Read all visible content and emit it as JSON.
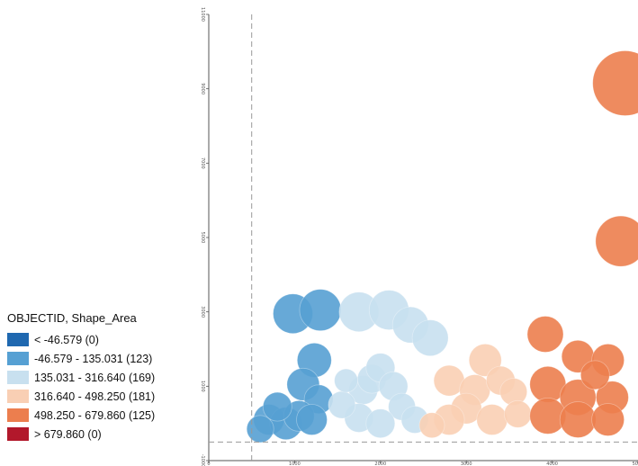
{
  "chart_data": {
    "type": "scatter",
    "title": "",
    "xlabel": "",
    "ylabel": "",
    "xlim": [
      0,
      5000
    ],
    "ylim": [
      -1000,
      11000
    ],
    "x_reference_line": 500,
    "y_reference_line": -500,
    "x_ticks": [
      "0",
      "1000",
      "2000",
      "3000",
      "4000",
      "5000"
    ],
    "y_ticks": [
      "-1000",
      "1000",
      "3000",
      "5000",
      "7000",
      "9000",
      "11000"
    ],
    "bubbles": [
      {
        "class": 1,
        "x": 980,
        "y": 2950,
        "size": 22
      },
      {
        "class": 1,
        "x": 1300,
        "y": 3050,
        "size": 23
      },
      {
        "class": 1,
        "x": 1230,
        "y": 1700,
        "size": 19
      },
      {
        "class": 1,
        "x": 1100,
        "y": 1050,
        "size": 18
      },
      {
        "class": 1,
        "x": 1280,
        "y": 650,
        "size": 16
      },
      {
        "class": 1,
        "x": 700,
        "y": 100,
        "size": 17
      },
      {
        "class": 1,
        "x": 900,
        "y": 0,
        "size": 18
      },
      {
        "class": 1,
        "x": 1050,
        "y": 200,
        "size": 17
      },
      {
        "class": 1,
        "x": 1200,
        "y": 100,
        "size": 17
      },
      {
        "class": 1,
        "x": 800,
        "y": 450,
        "size": 16
      },
      {
        "class": 1,
        "x": 600,
        "y": -150,
        "size": 15
      },
      {
        "class": 2,
        "x": 1750,
        "y": 3000,
        "size": 22
      },
      {
        "class": 2,
        "x": 2100,
        "y": 3050,
        "size": 22
      },
      {
        "class": 2,
        "x": 2350,
        "y": 2650,
        "size": 20
      },
      {
        "class": 2,
        "x": 2580,
        "y": 2300,
        "size": 20
      },
      {
        "class": 2,
        "x": 1800,
        "y": 900,
        "size": 16
      },
      {
        "class": 2,
        "x": 1900,
        "y": 1200,
        "size": 16
      },
      {
        "class": 2,
        "x": 2000,
        "y": 1500,
        "size": 16
      },
      {
        "class": 2,
        "x": 2150,
        "y": 1000,
        "size": 16
      },
      {
        "class": 2,
        "x": 2250,
        "y": 450,
        "size": 15
      },
      {
        "class": 2,
        "x": 1750,
        "y": 150,
        "size": 16
      },
      {
        "class": 2,
        "x": 2000,
        "y": 0,
        "size": 16
      },
      {
        "class": 2,
        "x": 2400,
        "y": 100,
        "size": 15
      },
      {
        "class": 2,
        "x": 1550,
        "y": 500,
        "size": 15
      },
      {
        "class": 2,
        "x": 1600,
        "y": 1150,
        "size": 13
      },
      {
        "class": 3,
        "x": 3220,
        "y": 1700,
        "size": 18
      },
      {
        "class": 3,
        "x": 2800,
        "y": 1150,
        "size": 17
      },
      {
        "class": 3,
        "x": 3100,
        "y": 900,
        "size": 17
      },
      {
        "class": 3,
        "x": 3400,
        "y": 1150,
        "size": 16
      },
      {
        "class": 3,
        "x": 3550,
        "y": 850,
        "size": 15
      },
      {
        "class": 3,
        "x": 3000,
        "y": 400,
        "size": 17
      },
      {
        "class": 3,
        "x": 3300,
        "y": 100,
        "size": 17
      },
      {
        "class": 3,
        "x": 2800,
        "y": 100,
        "size": 17
      },
      {
        "class": 3,
        "x": 3600,
        "y": 250,
        "size": 15
      },
      {
        "class": 3,
        "x": 2600,
        "y": -50,
        "size": 14
      },
      {
        "class": 4,
        "x": 4850,
        "y": 9150,
        "size": 36
      },
      {
        "class": 4,
        "x": 4800,
        "y": 4900,
        "size": 28
      },
      {
        "class": 4,
        "x": 3920,
        "y": 2400,
        "size": 20
      },
      {
        "class": 4,
        "x": 4300,
        "y": 1800,
        "size": 18
      },
      {
        "class": 4,
        "x": 4650,
        "y": 1700,
        "size": 18
      },
      {
        "class": 4,
        "x": 3950,
        "y": 1050,
        "size": 20
      },
      {
        "class": 4,
        "x": 4300,
        "y": 700,
        "size": 20
      },
      {
        "class": 4,
        "x": 4700,
        "y": 700,
        "size": 18
      },
      {
        "class": 4,
        "x": 3950,
        "y": 200,
        "size": 20
      },
      {
        "class": 4,
        "x": 4300,
        "y": 100,
        "size": 20
      },
      {
        "class": 4,
        "x": 4650,
        "y": 100,
        "size": 18
      },
      {
        "class": 4,
        "x": 4500,
        "y": 1300,
        "size": 16
      }
    ],
    "legend": {
      "title": "OBJECTID, Shape_Area",
      "placement": "bottom-left",
      "entries": [
        {
          "label": "< -46.579 (0)",
          "color": "#1f68b0"
        },
        {
          "label": "-46.579 - 135.031 (123)",
          "color": "#56a0d3"
        },
        {
          "label": "135.031 - 316.640 (169)",
          "color": "#c8e0ef"
        },
        {
          "label": "316.640 - 498.250 (181)",
          "color": "#f9cfb4"
        },
        {
          "label": "498.250 - 679.860 (125)",
          "color": "#ec7e4e"
        },
        {
          "label": "> 679.860 (0)",
          "color": "#b2182b"
        }
      ]
    },
    "grid": false
  }
}
